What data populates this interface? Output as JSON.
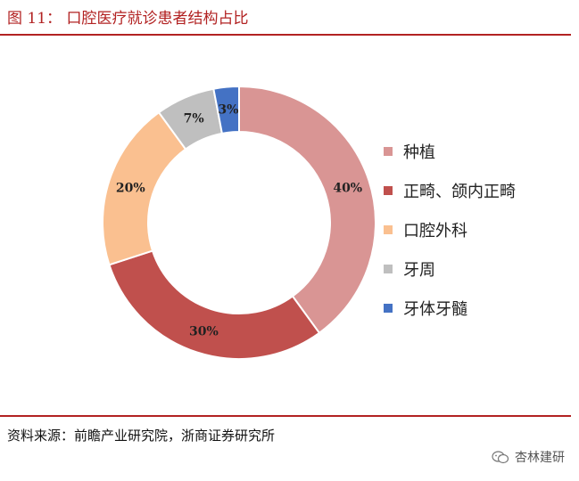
{
  "header": {
    "title": "图 11：  口腔医疗就诊患者结构占比"
  },
  "chart_data": {
    "type": "pie",
    "title": "",
    "categories": [
      "种植",
      "正畸、颌内正畸",
      "口腔外科",
      "牙周",
      "牙体牙髓"
    ],
    "values": [
      40,
      30,
      20,
      7,
      3
    ],
    "labels": [
      "40%",
      "30%",
      "20%",
      "7%",
      "3%"
    ],
    "colors": [
      "#d99594",
      "#c0504d",
      "#fac090",
      "#bfbfbf",
      "#4472c4"
    ],
    "donut": true,
    "legend_position": "right"
  },
  "footer": {
    "source": "资料来源：前瞻产业研究院，浙商证券研究所"
  },
  "watermark": {
    "text": "杏林建研"
  }
}
